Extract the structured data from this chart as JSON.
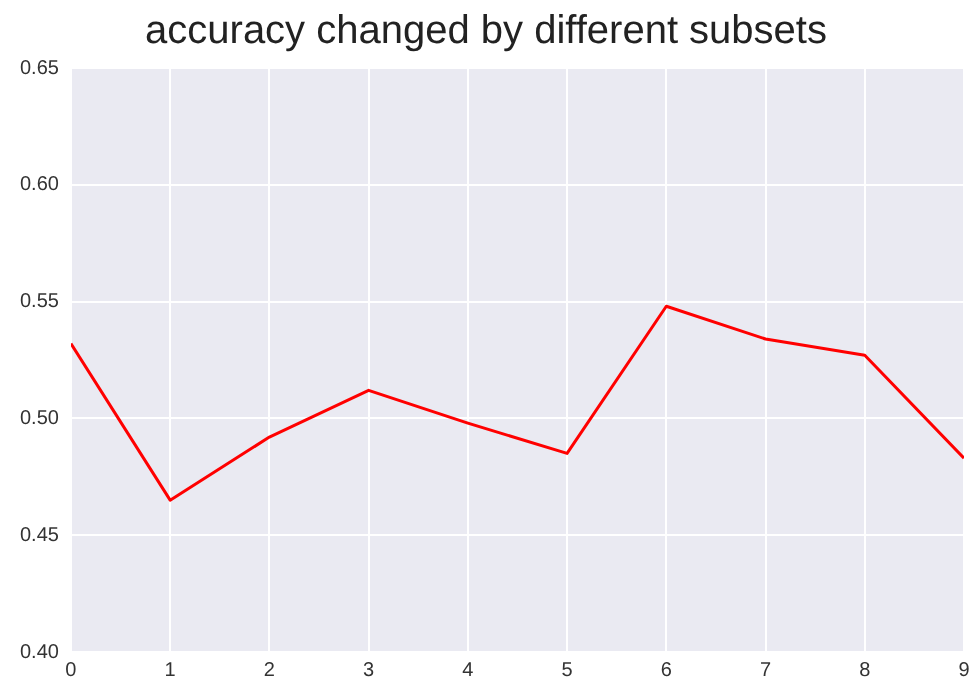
{
  "chart_data": {
    "type": "line",
    "title": "accuracy changed by different subsets",
    "x": [
      0,
      1,
      2,
      3,
      4,
      5,
      6,
      7,
      8,
      9
    ],
    "series": [
      {
        "color": "#ff0000",
        "values": [
          0.532,
          0.465,
          0.492,
          0.512,
          0.498,
          0.485,
          0.548,
          0.534,
          0.527,
          0.483
        ]
      }
    ],
    "xlim": [
      0,
      9
    ],
    "xticks": [
      0,
      1,
      2,
      3,
      4,
      5,
      6,
      7,
      8,
      9
    ],
    "ylim": [
      0.4,
      0.65
    ],
    "yticks": [
      {
        "value": 0.4,
        "label": "0.40"
      },
      {
        "value": 0.45,
        "label": "0.45"
      },
      {
        "value": 0.5,
        "label": "0.50"
      },
      {
        "value": 0.55,
        "label": "0.55"
      },
      {
        "value": 0.6,
        "label": "0.60"
      },
      {
        "value": 0.65,
        "label": "0.65"
      }
    ],
    "grid": true,
    "legend": false,
    "marker": "none",
    "line_style": "solid"
  }
}
